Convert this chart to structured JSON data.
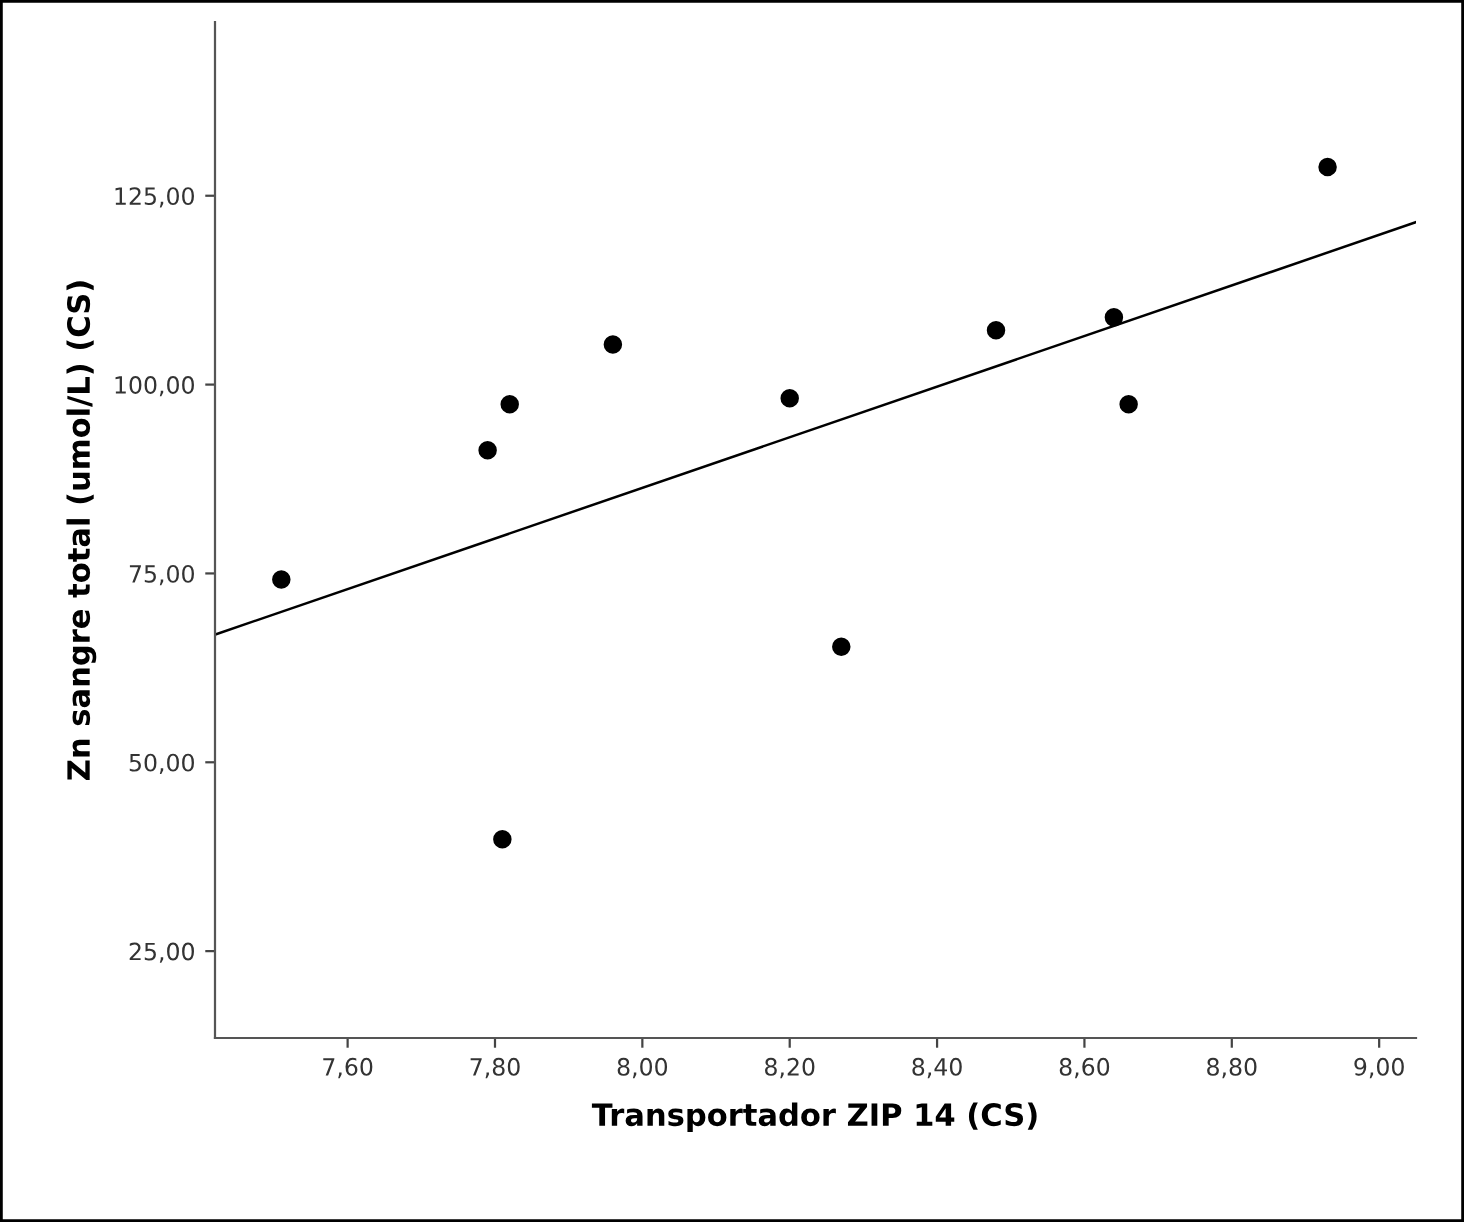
{
  "chart_data": {
    "type": "scatter",
    "xlabel": "Transportador ZIP 14 (CS)",
    "ylabel": "Zn sangre total (umol/L) (CS)",
    "xlim": [
      7.42,
      9.05
    ],
    "ylim": [
      13.5,
      148
    ],
    "xticks": [
      {
        "value": 7.6,
        "label": "7,60"
      },
      {
        "value": 7.8,
        "label": "7,80"
      },
      {
        "value": 8.0,
        "label": "8,00"
      },
      {
        "value": 8.2,
        "label": "8,20"
      },
      {
        "value": 8.4,
        "label": "8,40"
      },
      {
        "value": 8.6,
        "label": "8,60"
      },
      {
        "value": 8.8,
        "label": "8,80"
      },
      {
        "value": 9.0,
        "label": "9,00"
      }
    ],
    "yticks": [
      {
        "value": 25,
        "label": "25,00"
      },
      {
        "value": 50,
        "label": "50,00"
      },
      {
        "value": 75,
        "label": "75,00"
      },
      {
        "value": 100,
        "label": "100,00"
      },
      {
        "value": 125,
        "label": "125,00"
      }
    ],
    "grid": false,
    "legend": false,
    "series": [
      {
        "color": "#000000",
        "marker": "circle",
        "x": [
          7.51,
          7.79,
          7.82,
          7.81,
          7.96,
          8.2,
          8.27,
          8.48,
          8.64,
          8.66,
          8.93
        ],
        "values": [
          74.2,
          91.3,
          97.4,
          39.8,
          105.3,
          98.2,
          65.3,
          107.2,
          108.9,
          97.4,
          128.8
        ]
      },
      {
        "type": "line",
        "color": "#000000",
        "marker": "none",
        "line_style": "solid",
        "x": [
          7.42,
          9.05
        ],
        "values": [
          66.9,
          121.5
        ]
      }
    ]
  }
}
